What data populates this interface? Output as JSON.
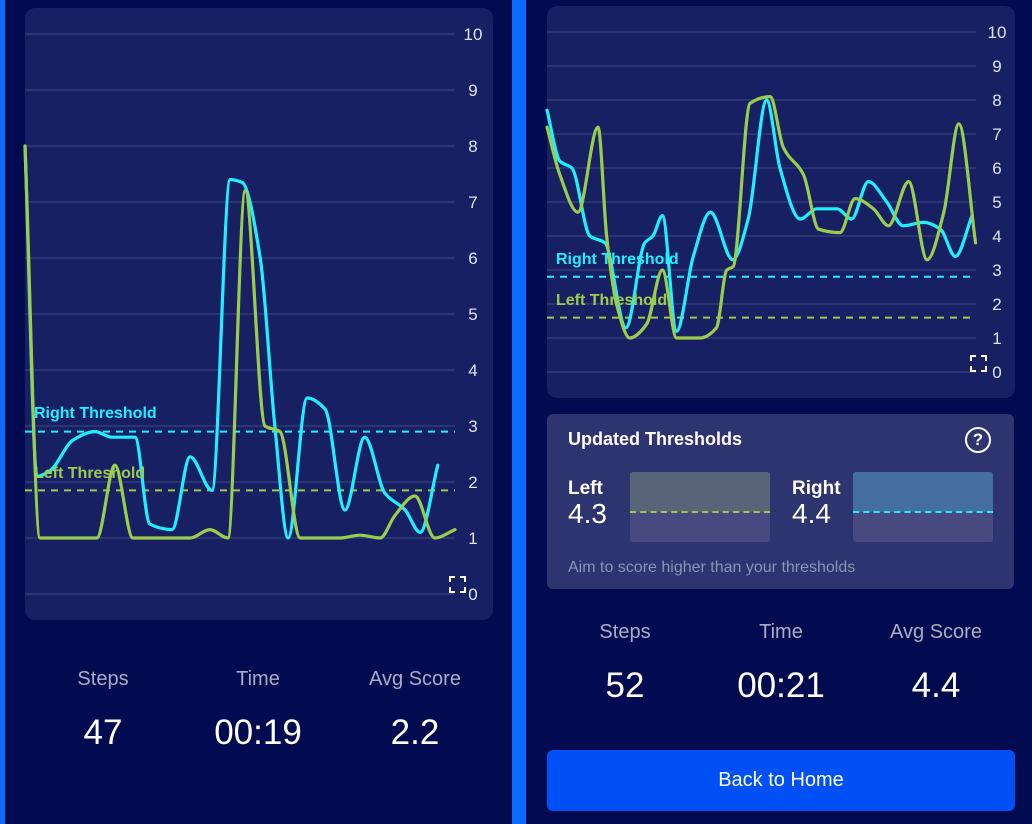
{
  "colors": {
    "left": "#9ccc4c",
    "right": "#1ff0ff",
    "accent": "#0050f5"
  },
  "screens": [
    {
      "chart_data": {
        "type": "line",
        "ylim": [
          0,
          10
        ],
        "yticks": [
          "0",
          "1",
          "2",
          "3",
          "4",
          "5",
          "6",
          "7",
          "8",
          "9",
          "10"
        ],
        "thresholds": {
          "right": {
            "label": "Right Threshold",
            "value": 2.9
          },
          "left": {
            "label": "Left Threshold",
            "value": 1.85
          }
        },
        "series": [
          {
            "name": "Right",
            "points": [
              [
                0,
                8
              ],
              [
                2.8,
                2.1
              ],
              [
                5.8,
                2.2
              ],
              [
                11.2,
                2.75
              ],
              [
                16.3,
                2.9
              ],
              [
                20.2,
                2.8
              ],
              [
                25.6,
                2.8
              ],
              [
                29,
                1.25
              ],
              [
                34.2,
                1.15
              ],
              [
                38.4,
                2.45
              ],
              [
                43.5,
                1.85
              ],
              [
                47.7,
                7.4
              ],
              [
                50.5,
                7.35
              ],
              [
                54.7,
                6
              ],
              [
                58.1,
                3
              ],
              [
                61.2,
                1
              ],
              [
                65.6,
                3.5
              ],
              [
                69.8,
                3.3
              ],
              [
                74.4,
                1.5
              ],
              [
                79,
                2.8
              ],
              [
                83.7,
                1.8
              ],
              [
                88.4,
                1.5
              ],
              [
                91.9,
                1.1
              ],
              [
                96,
                2.3
              ]
            ]
          },
          {
            "name": "Left",
            "points": [
              [
                0,
                8
              ],
              [
                3.5,
                1
              ],
              [
                16.7,
                1
              ],
              [
                20.9,
                2.3
              ],
              [
                25.1,
                1
              ],
              [
                38.4,
                1
              ],
              [
                43,
                1.15
              ],
              [
                47.2,
                1
              ],
              [
                51.2,
                7.2
              ],
              [
                55.8,
                3
              ],
              [
                59.3,
                2.9
              ],
              [
                64,
                1
              ],
              [
                73.3,
                1
              ],
              [
                77.9,
                1.05
              ],
              [
                82.6,
                1
              ],
              [
                86,
                1.4
              ],
              [
                90.7,
                1.75
              ],
              [
                95.3,
                1
              ],
              [
                100,
                1.15
              ]
            ]
          }
        ]
      },
      "stats": [
        {
          "label": "Steps",
          "value": "47"
        },
        {
          "label": "Time",
          "value": "00:19"
        },
        {
          "label": "Avg Score",
          "value": "2.2"
        }
      ]
    },
    {
      "chart_data": {
        "type": "line",
        "ylim": [
          0,
          10
        ],
        "yticks": [
          "0",
          "1",
          "2",
          "3",
          "4",
          "5",
          "6",
          "7",
          "8",
          "9",
          "10"
        ],
        "thresholds": {
          "right": {
            "label": "Right Threshold",
            "value": 2.8
          },
          "left": {
            "label": "Left Threshold",
            "value": 1.6
          }
        },
        "series": [
          {
            "name": "Right",
            "points": [
              [
                0,
                7.7
              ],
              [
                3,
                6.2
              ],
              [
                5.8,
                6
              ],
              [
                10,
                4
              ],
              [
                13.5,
                3.8
              ],
              [
                18.4,
                1.3
              ],
              [
                22.8,
                3.8
              ],
              [
                24.7,
                4
              ],
              [
                26.9,
                4.6
              ],
              [
                30.2,
                1.2
              ],
              [
                34.1,
                3.4
              ],
              [
                38.1,
                4.7
              ],
              [
                43.3,
                3.3
              ],
              [
                46.9,
                4.5
              ],
              [
                51.2,
                8
              ],
              [
                54.3,
                6
              ],
              [
                59,
                4.5
              ],
              [
                62.9,
                4.8
              ],
              [
                67.6,
                4.8
              ],
              [
                71,
                4.5
              ],
              [
                74.9,
                5.6
              ],
              [
                79.2,
                5
              ],
              [
                83,
                4.3
              ],
              [
                87.8,
                4.4
              ],
              [
                91.7,
                4.2
              ],
              [
                95.2,
                3.4
              ],
              [
                99.1,
                4.6
              ]
            ]
          },
          {
            "name": "Left",
            "points": [
              [
                0,
                7.2
              ],
              [
                3,
                5.8
              ],
              [
                7.2,
                4.7
              ],
              [
                11.9,
                7.2
              ],
              [
                13.9,
                4
              ],
              [
                16.2,
                2
              ],
              [
                19.3,
                1
              ],
              [
                23.2,
                1.4
              ],
              [
                26.9,
                3
              ],
              [
                30.2,
                1
              ],
              [
                35.6,
                1
              ],
              [
                39.5,
                1.3
              ],
              [
                41.9,
                3
              ],
              [
                43.4,
                3.1
              ],
              [
                47.3,
                7.9
              ],
              [
                52,
                8.1
              ],
              [
                55.1,
                6.6
              ],
              [
                59.8,
                5.8
              ],
              [
                63.3,
                4.2
              ],
              [
                68.3,
                4.1
              ],
              [
                71.8,
                5.1
              ],
              [
                76.1,
                4.8
              ],
              [
                79.6,
                4.3
              ],
              [
                84.3,
                5.6
              ],
              [
                88.6,
                3.3
              ],
              [
                92.5,
                4.7
              ],
              [
                96,
                7.3
              ],
              [
                99.9,
                3.8
              ]
            ]
          }
        ]
      },
      "updated_thresholds": {
        "title": "Updated Thresholds",
        "help": "?",
        "left_label": "Left",
        "left_value": "4.3",
        "right_label": "Right",
        "right_value": "4.4",
        "caption": "Aim to score higher than your thresholds"
      },
      "stats": [
        {
          "label": "Steps",
          "value": "52"
        },
        {
          "label": "Time",
          "value": "00:21"
        },
        {
          "label": "Avg Score",
          "value": "4.4"
        }
      ],
      "button": "Back to Home"
    }
  ]
}
